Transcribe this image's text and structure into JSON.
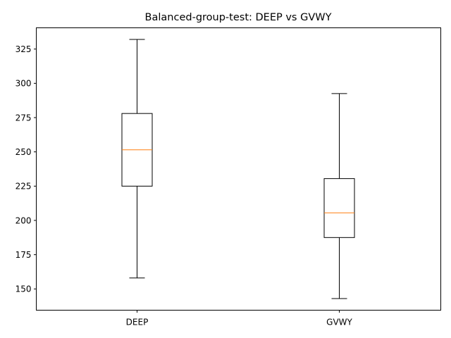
{
  "chart_data": {
    "type": "box",
    "title": "Balanced-group-test: DEEP vs GVWY",
    "xlabel": "",
    "ylabel": "",
    "categories": [
      "DEEP",
      "GVWY"
    ],
    "boxes": [
      {
        "name": "DEEP",
        "whisker_low": 158,
        "q1": 225,
        "median": 251.5,
        "q3": 278,
        "whisker_high": 332
      },
      {
        "name": "GVWY",
        "whisker_low": 143,
        "q1": 187.5,
        "median": 205.5,
        "q3": 230.5,
        "whisker_high": 292.5
      }
    ],
    "yticks": [
      150,
      175,
      200,
      225,
      250,
      275,
      300,
      325
    ],
    "ytick_labels": [
      "150",
      "175",
      "200",
      "225",
      "250",
      "275",
      "300",
      "325"
    ],
    "ylim": [
      134.5,
      340.5
    ],
    "grid": false,
    "colors": {
      "box": "#000000",
      "median": "#ff7f0e",
      "whisker": "#000000"
    }
  }
}
